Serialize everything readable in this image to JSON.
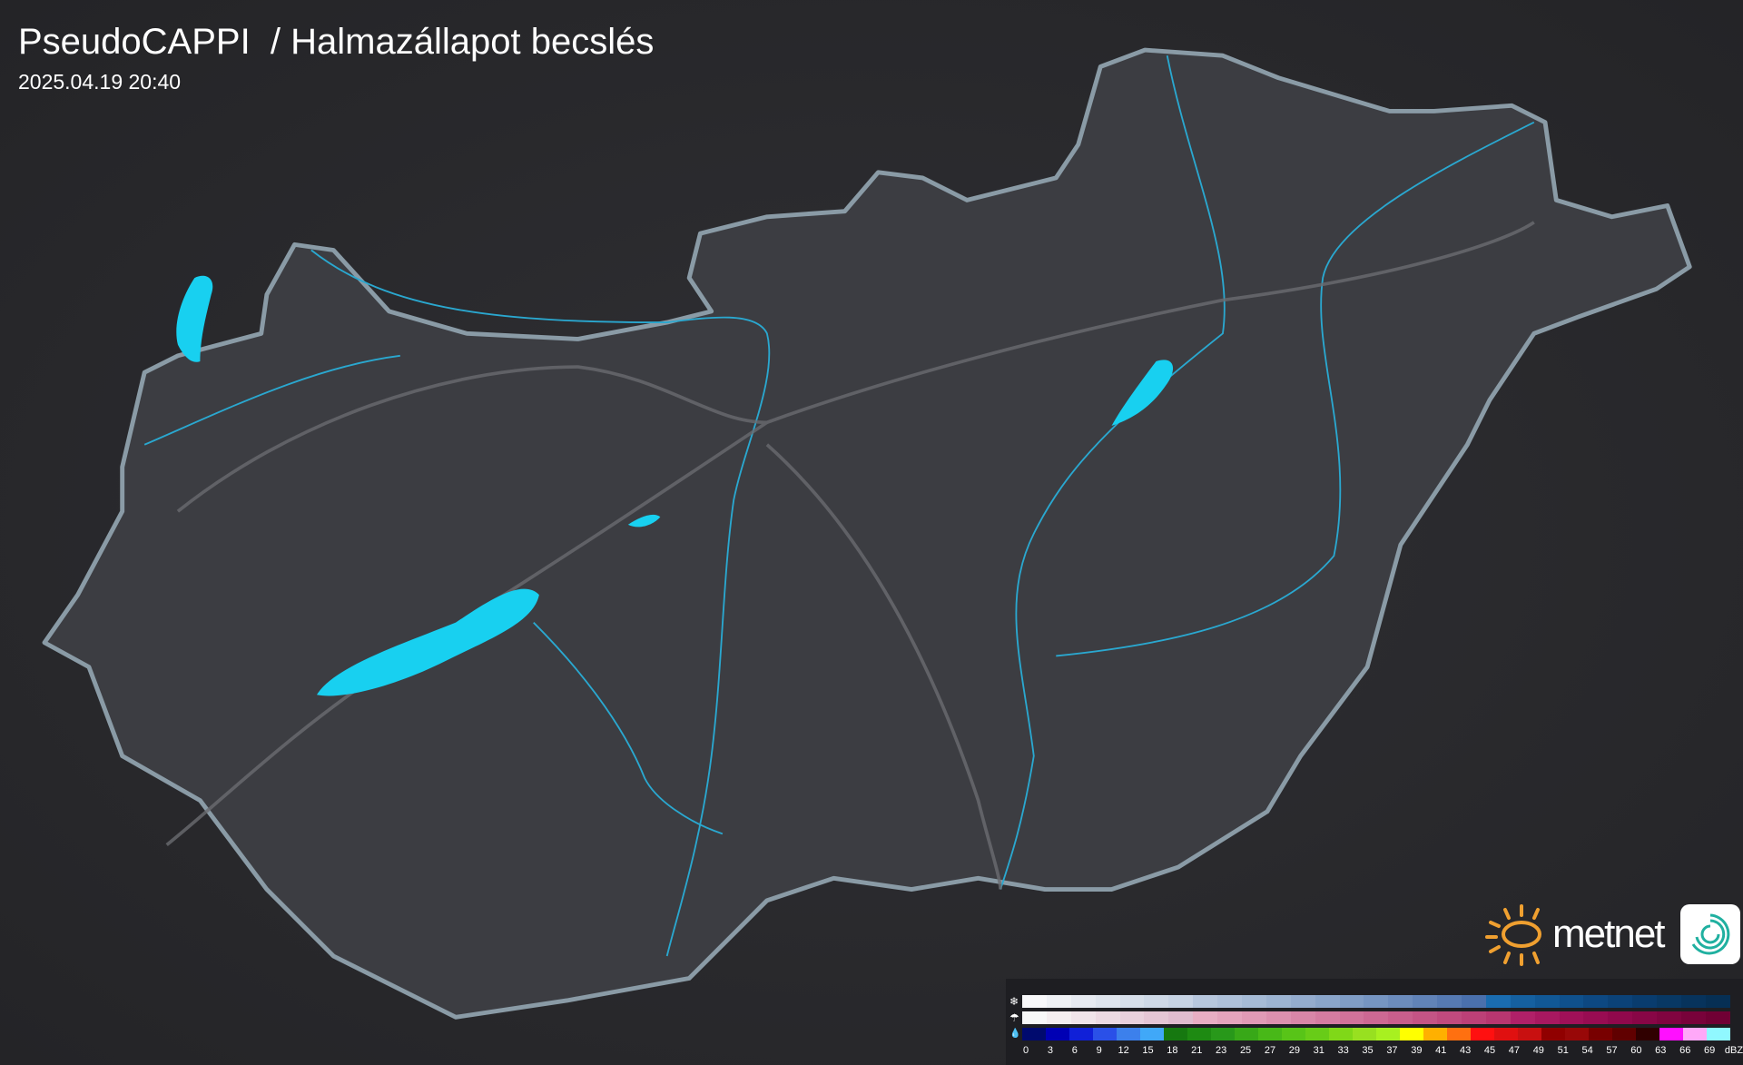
{
  "header": {
    "title": "PseudoCAPPI  / Halmazállapot becslés",
    "timestamp": "2025.04.19 20:40"
  },
  "logo": {
    "brand": "metnet",
    "icon": "metnet-app-icon"
  },
  "colors": {
    "lakes": "#18d0f0",
    "border": "#8a9ba6",
    "rivers": "#2aa8d0",
    "country_fill": "#3c3d42",
    "background": "#2b2b2f"
  },
  "legend": {
    "unit": "dBZ",
    "rows": [
      {
        "icon": "snowflake-icon",
        "glyph": "❄",
        "colors": [
          "#f8f8fa",
          "#eff1f5",
          "#e7eaf1",
          "#dfe4ed",
          "#d7dfea",
          "#cfd9e7",
          "#c7d3e4",
          "#b7c7dd",
          "#afc1da",
          "#a6bbd6",
          "#9db4d2",
          "#94acce",
          "#8aa5ca",
          "#809dc6",
          "#7695c2",
          "#6c8cbd",
          "#6183b8",
          "#567ab3",
          "#4a70ad",
          "#1a6cb0",
          "#1560a0",
          "#115896",
          "#0f508c",
          "#0d4882",
          "#0b4278",
          "#093c6e",
          "#083864",
          "#07335c",
          "#062f54"
        ]
      },
      {
        "icon": "mixed-precip-icon",
        "glyph": "☂",
        "colors": [
          "#f8f8f8",
          "#f4eef0",
          "#f0e4ea",
          "#ecdae3",
          "#e8d0dc",
          "#e4c6d5",
          "#e0bccf",
          "#e8aec4",
          "#e4a4bd",
          "#e09ab6",
          "#dc90af",
          "#d886a8",
          "#d47ca1",
          "#d0729a",
          "#cc6893",
          "#c85e8c",
          "#c45485",
          "#c04a7e",
          "#bc4077",
          "#b83670",
          "#b02068",
          "#a81860",
          "#a01058",
          "#980c52",
          "#90084c",
          "#880646",
          "#800440",
          "#78023a",
          "#700034"
        ]
      },
      {
        "icon": "raindrop-icon",
        "glyph": "💧",
        "colors": [
          "#000a6e",
          "#0000b4",
          "#1020d8",
          "#2a50e8",
          "#3c80ec",
          "#40a8f8",
          "#167810",
          "#1e8a12",
          "#28981a",
          "#38a818",
          "#48b818",
          "#58c418",
          "#68cc18",
          "#80d818",
          "#98e020",
          "#a8f020",
          "#ffff00",
          "#ffb000",
          "#ff7010",
          "#ff1010",
          "#e01010",
          "#c81010",
          "#900000",
          "#980808",
          "#780000",
          "#600000",
          "#300000",
          "#ff10ff",
          "#ffa8f8"
        ]
      }
    ],
    "extra_color": "#90f8ff",
    "ticks": [
      "0",
      "3",
      "6",
      "9",
      "12",
      "15",
      "18",
      "21",
      "23",
      "25",
      "27",
      "29",
      "31",
      "33",
      "35",
      "37",
      "39",
      "41",
      "43",
      "45",
      "47",
      "49",
      "51",
      "54",
      "57",
      "60",
      "63",
      "66",
      "69"
    ]
  }
}
